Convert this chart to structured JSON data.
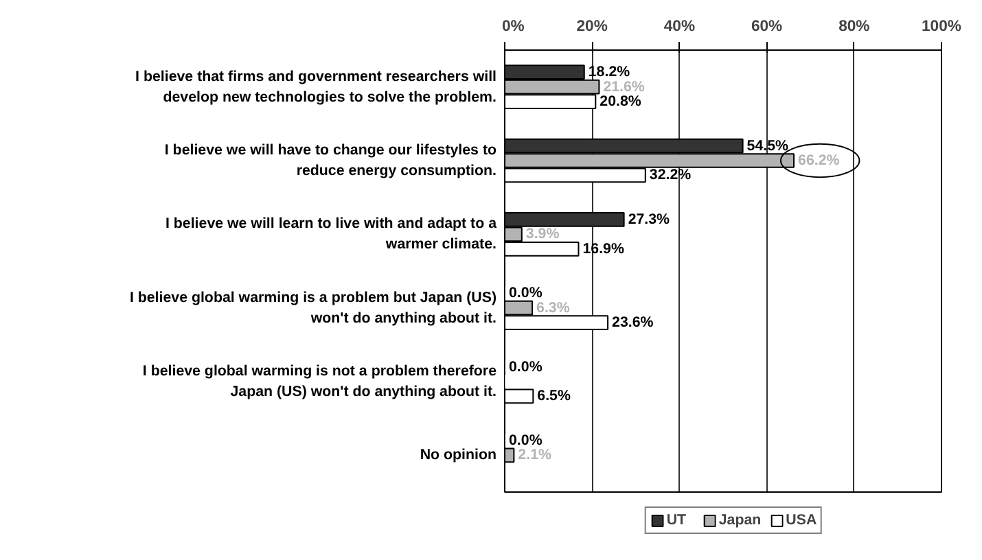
{
  "chart_data": {
    "type": "bar",
    "orientation": "horizontal",
    "categories": [
      "I believe that firms and government researchers will develop new technologies to solve the problem.",
      "I believe we will have to change our lifestyles to reduce energy consumption.",
      "I believe we will learn to live with and adapt to a warmer climate.",
      "I believe global warming is a problem but Japan (US) won't do anything about it.",
      "I believe global warming is not a problem therefore Japan (US) won't do anything about it.",
      "No opinion"
    ],
    "series": [
      {
        "name": "UT",
        "color": "#333333",
        "values": [
          18.2,
          54.5,
          27.3,
          0.0,
          0.0,
          0.0
        ],
        "value_labels": [
          "18.2%",
          "54.5%",
          "27.3%",
          "0.0%",
          "0.0%",
          "0.0%"
        ]
      },
      {
        "name": "Japan",
        "color": "#b3b3b3",
        "values": [
          21.6,
          66.2,
          3.9,
          6.3,
          0.0,
          2.1
        ],
        "value_labels": [
          "21.6%",
          "66.2%",
          "3.9%",
          "6.3%",
          null,
          "2.1%"
        ]
      },
      {
        "name": "USA",
        "color": "#ffffff",
        "values": [
          20.8,
          32.2,
          16.9,
          23.6,
          6.5,
          null
        ],
        "value_labels": [
          "20.8%",
          "32.2%",
          "16.9%",
          "23.6%",
          "6.5%",
          null
        ]
      }
    ],
    "xlim": [
      0,
      100
    ],
    "xticks": [
      {
        "value": 0,
        "label": "0%"
      },
      {
        "value": 20,
        "label": "20%"
      },
      {
        "value": 40,
        "label": "40%"
      },
      {
        "value": 60,
        "label": "60%"
      },
      {
        "value": 80,
        "label": "80%"
      },
      {
        "value": 100,
        "label": "100%"
      }
    ],
    "grid": "x",
    "legend": "bottom"
  }
}
